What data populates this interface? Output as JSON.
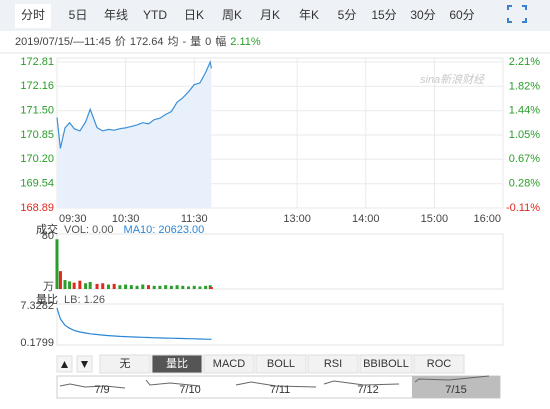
{
  "tabs": [
    "分时",
    "5日",
    "年线",
    "YTD",
    "日K",
    "周K",
    "月K",
    "年K",
    "5分",
    "15分",
    "30分",
    "60分"
  ],
  "selected_tab": 0,
  "quote": {
    "datetime": "2019/07/15/—11:45",
    "price_label": "价",
    "price": "172.64",
    "avg_label": "均",
    "avg": "-",
    "vol_label": "量",
    "vol": "0",
    "change_label": "幅",
    "change": "2.11%"
  },
  "chart_data": [
    {
      "type": "line",
      "watermark": "sina新浪财经",
      "x": [
        "09:30",
        "09:33",
        "09:37",
        "09:41",
        "09:45",
        "09:50",
        "09:55",
        "09:59",
        "10:05",
        "10:10",
        "10:15",
        "10:20",
        "10:25",
        "10:30",
        "10:35",
        "10:40",
        "10:45",
        "10:50",
        "10:55",
        "11:00",
        "11:05",
        "11:10",
        "11:15",
        "11:20",
        "11:25",
        "11:30",
        "11:35",
        "11:40",
        "11:44",
        "11:45"
      ],
      "values": [
        171.32,
        170.49,
        171.04,
        171.18,
        171.02,
        170.96,
        171.2,
        171.54,
        171.05,
        170.96,
        171.0,
        170.98,
        171.02,
        171.04,
        171.08,
        171.12,
        171.18,
        171.15,
        171.26,
        171.3,
        171.4,
        171.48,
        171.73,
        171.85,
        172.01,
        172.2,
        172.25,
        172.53,
        172.81,
        172.64
      ],
      "color": "#3d8fd8",
      "fill": "#e8f1fb",
      "xlim": [
        "09:30",
        "16:00"
      ],
      "xticks": [
        "09:30",
        "10:30",
        "11:30",
        "13:00",
        "14:00",
        "15:00",
        "16:00"
      ],
      "ylim": [
        168.89,
        172.81
      ],
      "yticks": [
        172.81,
        172.16,
        {
          "value": 171.5,
          "label": "171.50"
        },
        170.85,
        {
          "value": 170.2,
          "label": "170.20"
        },
        169.54,
        168.89
      ],
      "y2lim": [
        -0.11,
        2.21
      ],
      "y2ticks": [
        {
          "value": 2.21,
          "label": "2.21%"
        },
        {
          "value": 1.82,
          "label": "1.82%"
        },
        {
          "value": 1.44,
          "label": "1.44%"
        },
        {
          "value": 1.05,
          "label": "1.05%"
        },
        {
          "value": 0.67,
          "label": "0.67%"
        },
        {
          "value": 0.28,
          "label": "0.28%"
        },
        {
          "value": -0.11,
          "label": "-0.11%"
        }
      ],
      "up_color": "#2a9d2a",
      "down_color": "#e0281e",
      "grid": true
    },
    {
      "type": "bar",
      "title": "成交",
      "annotations": [
        "VOL: 0.00",
        "MA10: 20623.00"
      ],
      "x": [
        "09:30",
        "09:33",
        "09:37",
        "09:41",
        "09:45",
        "09:50",
        "09:55",
        "09:59",
        "10:05",
        "10:10",
        "10:15",
        "10:20",
        "10:25",
        "10:30",
        "10:35",
        "10:40",
        "10:45",
        "10:50",
        "10:55",
        "11:00",
        "11:05",
        "11:10",
        "11:15",
        "11:20",
        "11:25",
        "11:30",
        "11:35",
        "11:40",
        "11:44",
        "11:45"
      ],
      "values": [
        78,
        28,
        14,
        12,
        10,
        13,
        9,
        11,
        8,
        9,
        7,
        8,
        6,
        7,
        6,
        5,
        7,
        6,
        5,
        5,
        6,
        5,
        6,
        5,
        4,
        5,
        4,
        5,
        6,
        3
      ],
      "colors": [
        "#2a9d2a",
        "#e0281e",
        "#2a9d2a",
        "#2a9d2a",
        "#e0281e",
        "#e0281e",
        "#2a9d2a",
        "#2a9d2a",
        "#e0281e",
        "#e0281e",
        "#2a9d2a",
        "#e0281e",
        "#2a9d2a",
        "#2a9d2a",
        "#2a9d2a",
        "#2a9d2a",
        "#2a9d2a",
        "#e0281e",
        "#2a9d2a",
        "#2a9d2a",
        "#2a9d2a",
        "#2a9d2a",
        "#2a9d2a",
        "#2a9d2a",
        "#2a9d2a",
        "#2a9d2a",
        "#2a9d2a",
        "#2a9d2a",
        "#2a9d2a",
        "#e0281e"
      ],
      "xlim": [
        "09:30",
        "16:00"
      ],
      "ylim": [
        0,
        80
      ],
      "yticks": [
        80,
        {
          "value": 0,
          "label": "万"
        }
      ]
    },
    {
      "type": "line",
      "title": "量比",
      "annotations": [
        "LB: 1.26"
      ],
      "x": [
        "09:30",
        "09:33",
        "09:37",
        "09:41",
        "09:45",
        "09:50",
        "09:55",
        "09:59",
        "10:05",
        "10:10",
        "10:15",
        "10:20",
        "10:25",
        "10:30",
        "10:35",
        "10:40",
        "10:45",
        "10:50",
        "10:55",
        "11:00",
        "11:05",
        "11:10",
        "11:15",
        "11:20",
        "11:25",
        "11:30",
        "11:35",
        "11:40",
        "11:44",
        "11:45"
      ],
      "values": [
        7.3282,
        5.2,
        4.0,
        3.4,
        3.0,
        2.7,
        2.5,
        2.35,
        2.2,
        2.1,
        2.0,
        1.92,
        1.85,
        1.8,
        1.75,
        1.7,
        1.66,
        1.62,
        1.58,
        1.55,
        1.52,
        1.49,
        1.46,
        1.43,
        1.4,
        1.37,
        1.34,
        1.31,
        1.28,
        1.26
      ],
      "color": "#2b86d6",
      "xlim": [
        "09:30",
        "16:00"
      ],
      "ylim": [
        0.1799,
        7.3282
      ],
      "yticks": [
        7.3282,
        0.1799
      ]
    }
  ],
  "indicator_tabs": [
    "无",
    "量比",
    "MACD",
    "BOLL",
    "RSI",
    "BBIBOLL",
    "ROC"
  ],
  "selected_indicator": 1,
  "nav_dates": [
    "7/9",
    "7/10",
    "7/11",
    "7/12",
    "7/15"
  ]
}
